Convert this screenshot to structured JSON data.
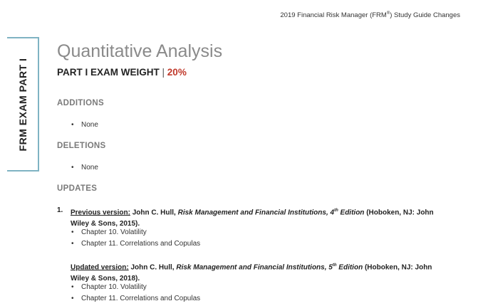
{
  "header": {
    "doc_title": "2019 Financial Risk Manager (FRM",
    "doc_title_sup": "®",
    "doc_title_end": ") Study Guide Changes"
  },
  "side_tab": "FRM EXAM PART I",
  "title": "Quantitative Analysis",
  "weight": {
    "label": "PART I EXAM WEIGHT",
    "separator": "|",
    "value": "20%"
  },
  "colors": {
    "accent_red": "#c0392b",
    "tab_border": "#7fb3c3",
    "section_gray": "#7a7a7a"
  },
  "sections": {
    "additions": {
      "heading": "ADDITIONS",
      "items": [
        "None"
      ]
    },
    "deletions": {
      "heading": "DELETIONS",
      "items": [
        "None"
      ]
    },
    "updates": {
      "heading": "UPDATES",
      "items": [
        {
          "number": "1.",
          "previous": {
            "label": "Previous version:",
            "author": " John C. Hull, ",
            "book": "Risk Management and Financial Institutions, 4",
            "sup": "th",
            "edition": " Edition",
            "pub": " (Hoboken, NJ: John Wiley & Sons, 2015).",
            "chapters": [
              "Chapter 10. Volatility",
              "Chapter 11. Correlations and Copulas"
            ]
          },
          "updated": {
            "label": "Updated version:",
            "author": " John C. Hull, ",
            "book": "Risk Management and Financial Institutions, 5",
            "sup": "th",
            "edition": " Edition",
            "pub": " (Hoboken, NJ: John Wiley & Sons, 2018).",
            "chapters": [
              "Chapter 10. Volatility",
              "Chapter 11. Correlations and Copulas"
            ]
          }
        }
      ]
    }
  }
}
